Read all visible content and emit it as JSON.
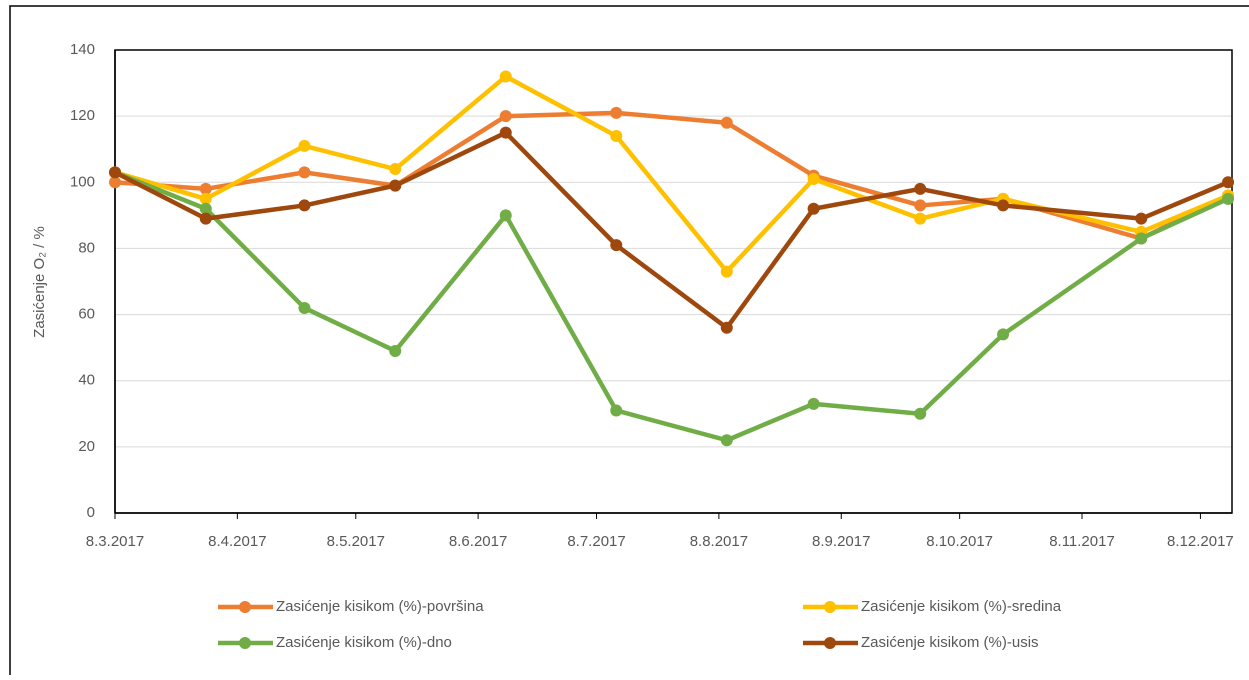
{
  "chart_data": {
    "type": "line",
    "y_label": "Zasićenje O₂ / %",
    "x": [
      "8.3.2017",
      "31.3.2017",
      "25.4.2017",
      "18.5.2017",
      "15.6.2017",
      "13.7.2017",
      "10.8.2017",
      "1.9.2017",
      "28.9.2017",
      "19.10.2017",
      "23.11.2017",
      "15.12.2017"
    ],
    "series": [
      {
        "name": "Zasićenje kisikom (%)-površina",
        "color": "#ed7d31",
        "values": [
          100,
          98,
          103,
          99,
          120,
          121,
          118,
          102,
          93,
          95,
          83,
          96
        ]
      },
      {
        "name": "Zasićenje kisikom (%)-sredina",
        "color": "#ffc000",
        "values": [
          103,
          95,
          111,
          104,
          132,
          114,
          73,
          101,
          89,
          95,
          85,
          96
        ]
      },
      {
        "name": "Zasićenje kisikom (%)-dno",
        "color": "#70ad47",
        "values": [
          103,
          92,
          62,
          49,
          90,
          31,
          22,
          33,
          30,
          54,
          83,
          95
        ]
      },
      {
        "name": "Zasićenje kisikom (%)-usis",
        "color": "#9e480e",
        "values": [
          103,
          89,
          93,
          99,
          115,
          81,
          56,
          92,
          98,
          93,
          89,
          100
        ]
      }
    ],
    "xlim": [
      "8.3.2017",
      "16.12.2017"
    ],
    "xticks": [
      "8.3.2017",
      "8.4.2017",
      "8.5.2017",
      "8.6.2017",
      "8.7.2017",
      "8.8.2017",
      "8.9.2017",
      "8.10.2017",
      "8.11.2017",
      "8.12.2017"
    ],
    "ylim": [
      0,
      140
    ],
    "yticks": [
      0,
      20,
      40,
      60,
      80,
      100,
      120,
      140
    ],
    "grid": true
  }
}
